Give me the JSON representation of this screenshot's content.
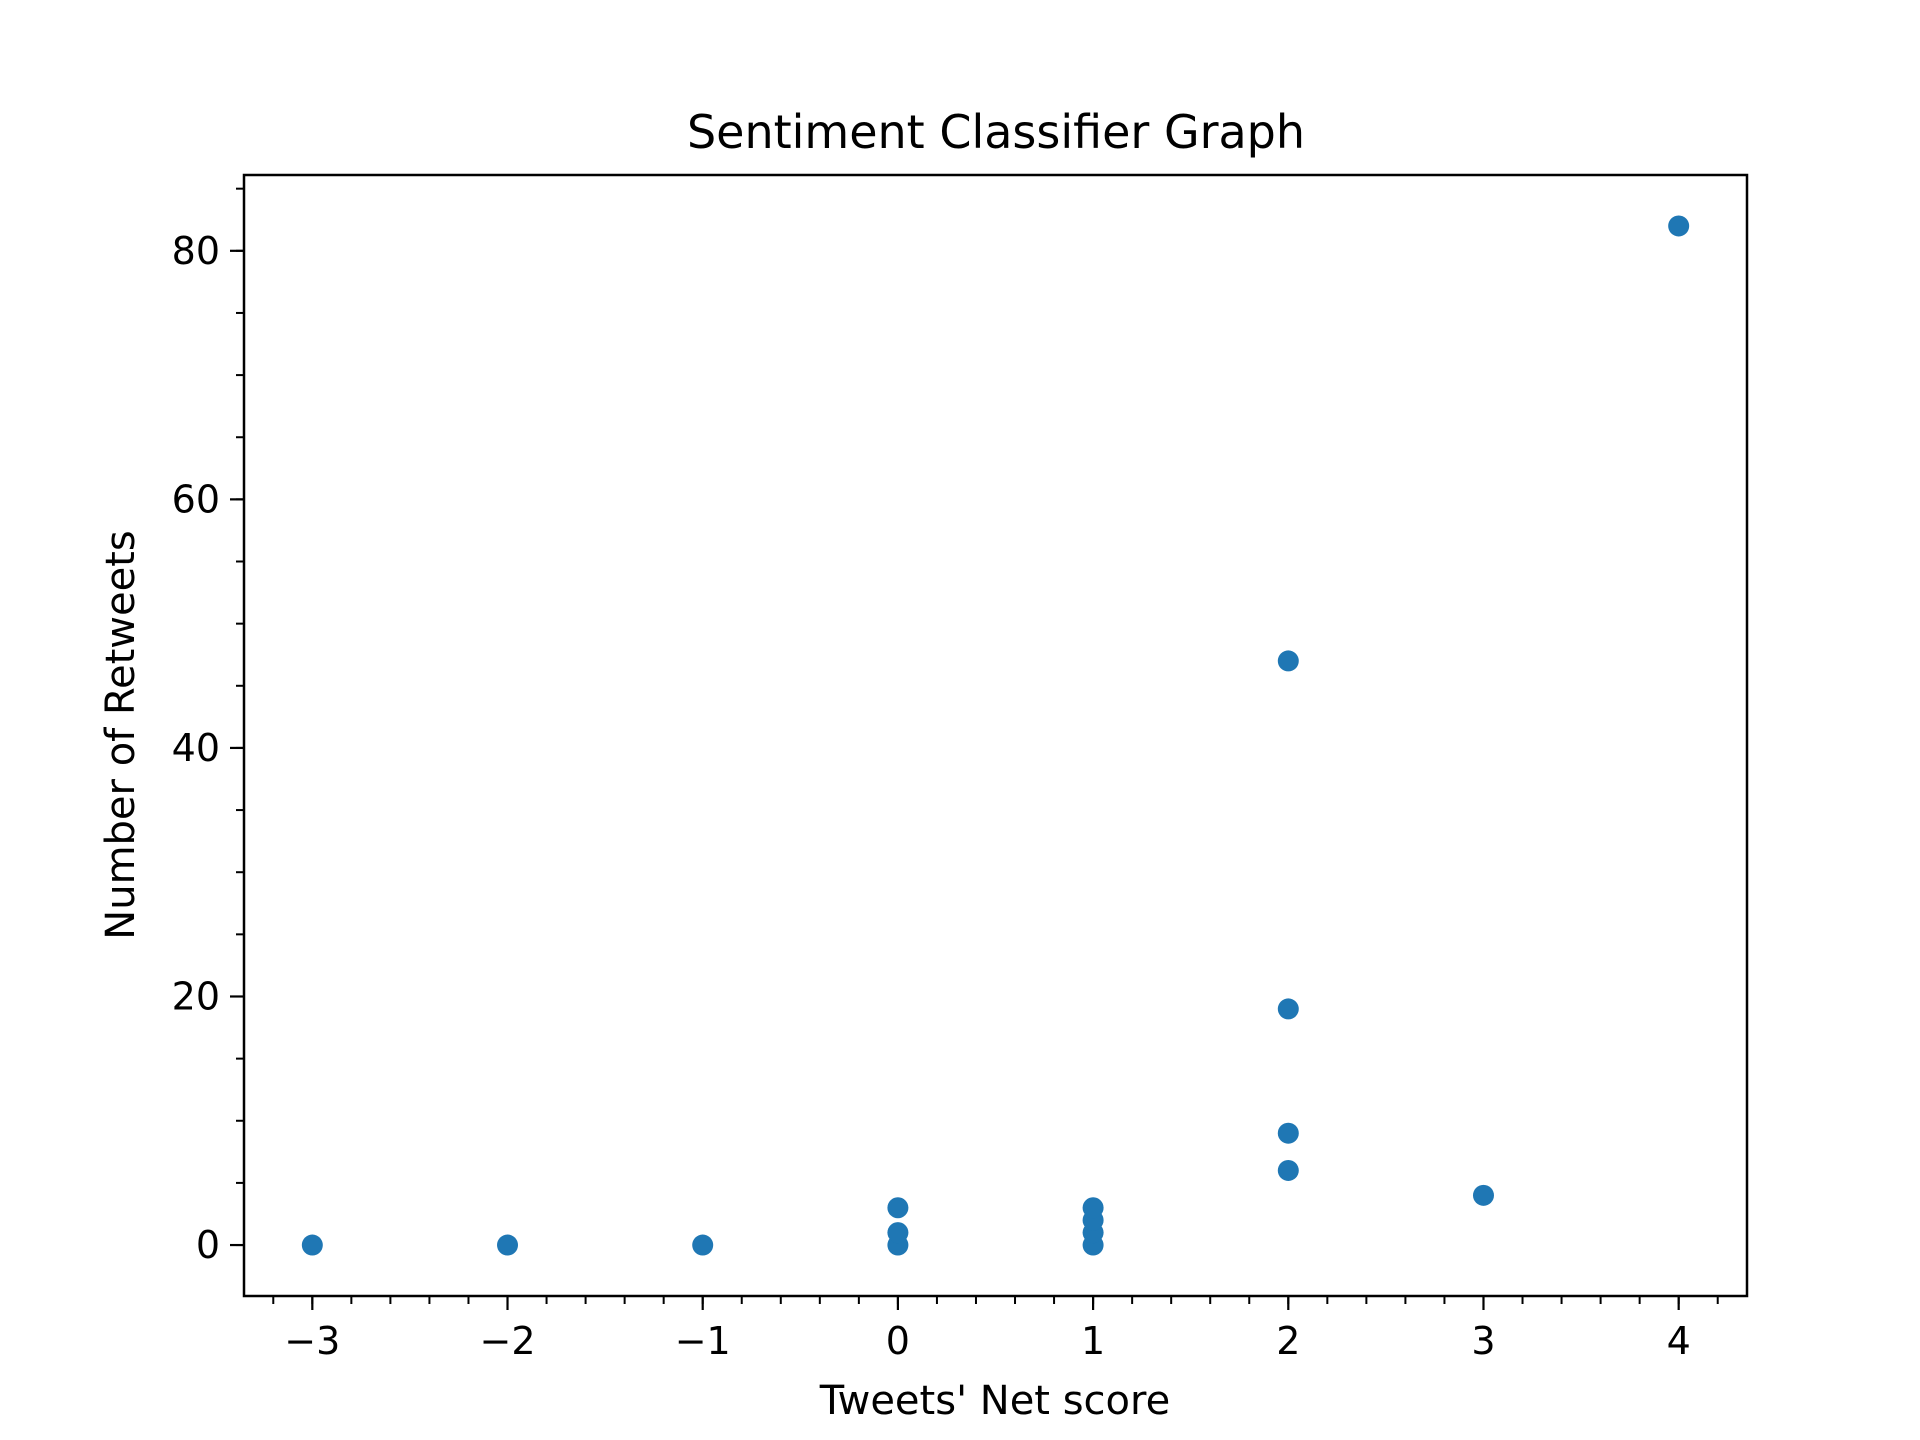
{
  "chart_data": {
    "type": "scatter",
    "title": "Sentiment Classifier Graph",
    "xlabel": "Tweets' Net score",
    "ylabel": "Number of Retweets",
    "xlim": [
      -3.35,
      4.35
    ],
    "ylim": [
      -4.1,
      86.1
    ],
    "x_ticks": [
      -3,
      -2,
      -1,
      0,
      1,
      2,
      3,
      4
    ],
    "x_tick_labels": [
      "−3",
      "−2",
      "−1",
      "0",
      "1",
      "2",
      "3",
      "4"
    ],
    "x_minor_step": 0.2,
    "y_ticks": [
      0,
      20,
      40,
      60,
      80
    ],
    "y_tick_labels": [
      "0",
      "20",
      "40",
      "60",
      "80"
    ],
    "y_minor_step": 5,
    "grid": false,
    "legend": "none",
    "point_color": "#1f77b4",
    "points": [
      {
        "x": -3,
        "y": 0
      },
      {
        "x": -2,
        "y": 0
      },
      {
        "x": -1,
        "y": 0
      },
      {
        "x": 0,
        "y": 0
      },
      {
        "x": 0,
        "y": 1
      },
      {
        "x": 0,
        "y": 3
      },
      {
        "x": 1,
        "y": 0
      },
      {
        "x": 1,
        "y": 1
      },
      {
        "x": 1,
        "y": 2
      },
      {
        "x": 1,
        "y": 3
      },
      {
        "x": 2,
        "y": 6
      },
      {
        "x": 2,
        "y": 9
      },
      {
        "x": 2,
        "y": 19
      },
      {
        "x": 2,
        "y": 47
      },
      {
        "x": 3,
        "y": 4
      },
      {
        "x": 4,
        "y": 82
      }
    ]
  }
}
